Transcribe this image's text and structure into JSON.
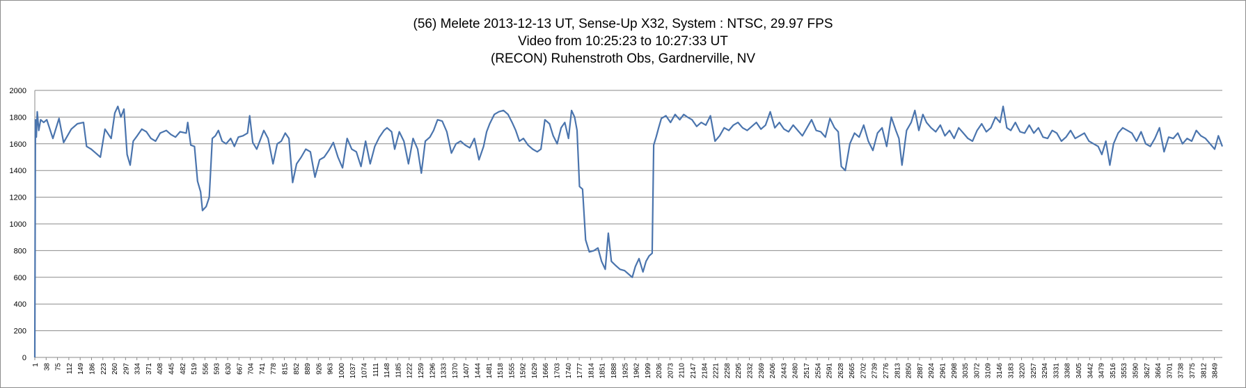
{
  "chart_data": {
    "type": "line",
    "title_lines": [
      "(56) Melete 2013-12-13 UT, Sense-Up X32, System : NTSC, 29.97 FPS",
      "Video from 10:25:23 to 10:27:33 UT",
      "(RECON) Ruhenstroth Obs, Gardnerville, NV"
    ],
    "xlabel": "",
    "ylabel": "",
    "ylim": [
      0,
      2000
    ],
    "y_ticks": [
      0,
      200,
      400,
      600,
      800,
      1000,
      1200,
      1400,
      1600,
      1800,
      2000
    ],
    "x_range": [
      1,
      3875
    ],
    "x_tick_step": 37,
    "x_tick_labels": [
      "1",
      "38",
      "75",
      "112",
      "149",
      "186",
      "223",
      "260",
      "297",
      "334",
      "371",
      "408",
      "445",
      "482",
      "519",
      "556",
      "593",
      "630",
      "667",
      "704",
      "741",
      "778",
      "815",
      "852",
      "889",
      "926",
      "963",
      "1000",
      "1037",
      "1074",
      "1111",
      "1148",
      "1185",
      "1222",
      "1259",
      "1296",
      "1333",
      "1370",
      "1407",
      "1444",
      "1481",
      "1518",
      "1555",
      "1592",
      "1629",
      "1666",
      "1703",
      "1740",
      "1777",
      "1814",
      "1851",
      "1888",
      "1925",
      "1962",
      "1999",
      "2036",
      "2073",
      "2110",
      "2147",
      "2184",
      "2221",
      "2258",
      "2295",
      "2332",
      "2369",
      "2406",
      "2443",
      "2480",
      "2517",
      "2554",
      "2591",
      "2628",
      "2665",
      "2702",
      "2739",
      "2776",
      "2813",
      "2850",
      "2887",
      "2924",
      "2961",
      "2998",
      "3035",
      "3072",
      "3109",
      "3146",
      "3183",
      "3220",
      "3257",
      "3294",
      "3331",
      "3368",
      "3405",
      "3442",
      "3479",
      "3516",
      "3553",
      "3590",
      "3627",
      "3664",
      "3701",
      "3738",
      "3775",
      "3812",
      "3849"
    ],
    "grid": true,
    "legend": "none",
    "series": [
      {
        "color": "#4a74ad",
        "points": [
          [
            1,
            0
          ],
          [
            3,
            1780
          ],
          [
            6,
            1650
          ],
          [
            9,
            1840
          ],
          [
            14,
            1700
          ],
          [
            20,
            1780
          ],
          [
            30,
            1760
          ],
          [
            40,
            1780
          ],
          [
            60,
            1640
          ],
          [
            80,
            1790
          ],
          [
            95,
            1610
          ],
          [
            120,
            1710
          ],
          [
            140,
            1750
          ],
          [
            160,
            1760
          ],
          [
            170,
            1580
          ],
          [
            185,
            1560
          ],
          [
            200,
            1530
          ],
          [
            215,
            1500
          ],
          [
            230,
            1710
          ],
          [
            250,
            1640
          ],
          [
            262,
            1830
          ],
          [
            272,
            1880
          ],
          [
            282,
            1800
          ],
          [
            292,
            1860
          ],
          [
            302,
            1520
          ],
          [
            312,
            1440
          ],
          [
            322,
            1620
          ],
          [
            335,
            1660
          ],
          [
            350,
            1710
          ],
          [
            365,
            1690
          ],
          [
            380,
            1640
          ],
          [
            395,
            1620
          ],
          [
            410,
            1680
          ],
          [
            430,
            1700
          ],
          [
            445,
            1670
          ],
          [
            460,
            1650
          ],
          [
            475,
            1690
          ],
          [
            495,
            1680
          ],
          [
            500,
            1760
          ],
          [
            510,
            1590
          ],
          [
            522,
            1580
          ],
          [
            532,
            1320
          ],
          [
            542,
            1240
          ],
          [
            548,
            1100
          ],
          [
            560,
            1130
          ],
          [
            570,
            1200
          ],
          [
            580,
            1640
          ],
          [
            590,
            1660
          ],
          [
            600,
            1700
          ],
          [
            612,
            1620
          ],
          [
            625,
            1600
          ],
          [
            640,
            1640
          ],
          [
            652,
            1580
          ],
          [
            665,
            1650
          ],
          [
            680,
            1660
          ],
          [
            695,
            1680
          ],
          [
            702,
            1810
          ],
          [
            712,
            1610
          ],
          [
            725,
            1560
          ],
          [
            735,
            1620
          ],
          [
            748,
            1700
          ],
          [
            762,
            1640
          ],
          [
            778,
            1450
          ],
          [
            792,
            1600
          ],
          [
            805,
            1620
          ],
          [
            818,
            1680
          ],
          [
            830,
            1640
          ],
          [
            842,
            1310
          ],
          [
            855,
            1450
          ],
          [
            870,
            1500
          ],
          [
            885,
            1560
          ],
          [
            900,
            1540
          ],
          [
            915,
            1350
          ],
          [
            930,
            1480
          ],
          [
            945,
            1500
          ],
          [
            960,
            1550
          ],
          [
            975,
            1610
          ],
          [
            990,
            1500
          ],
          [
            1005,
            1420
          ],
          [
            1020,
            1640
          ],
          [
            1035,
            1560
          ],
          [
            1050,
            1540
          ],
          [
            1065,
            1430
          ],
          [
            1080,
            1620
          ],
          [
            1095,
            1450
          ],
          [
            1110,
            1580
          ],
          [
            1125,
            1650
          ],
          [
            1140,
            1700
          ],
          [
            1150,
            1720
          ],
          [
            1165,
            1690
          ],
          [
            1175,
            1560
          ],
          [
            1190,
            1690
          ],
          [
            1205,
            1620
          ],
          [
            1220,
            1450
          ],
          [
            1235,
            1640
          ],
          [
            1250,
            1560
          ],
          [
            1262,
            1380
          ],
          [
            1275,
            1620
          ],
          [
            1290,
            1650
          ],
          [
            1302,
            1700
          ],
          [
            1315,
            1780
          ],
          [
            1330,
            1770
          ],
          [
            1345,
            1690
          ],
          [
            1360,
            1530
          ],
          [
            1375,
            1600
          ],
          [
            1390,
            1620
          ],
          [
            1405,
            1590
          ],
          [
            1420,
            1570
          ],
          [
            1435,
            1640
          ],
          [
            1450,
            1480
          ],
          [
            1465,
            1580
          ],
          [
            1475,
            1690
          ],
          [
            1485,
            1750
          ],
          [
            1500,
            1820
          ],
          [
            1515,
            1840
          ],
          [
            1530,
            1850
          ],
          [
            1545,
            1820
          ],
          [
            1558,
            1760
          ],
          [
            1570,
            1700
          ],
          [
            1582,
            1620
          ],
          [
            1595,
            1640
          ],
          [
            1610,
            1590
          ],
          [
            1625,
            1560
          ],
          [
            1640,
            1540
          ],
          [
            1652,
            1560
          ],
          [
            1665,
            1780
          ],
          [
            1680,
            1750
          ],
          [
            1692,
            1660
          ],
          [
            1705,
            1600
          ],
          [
            1718,
            1720
          ],
          [
            1730,
            1760
          ],
          [
            1742,
            1640
          ],
          [
            1752,
            1850
          ],
          [
            1762,
            1800
          ],
          [
            1770,
            1700
          ],
          [
            1778,
            1280
          ],
          [
            1788,
            1260
          ],
          [
            1798,
            880
          ],
          [
            1810,
            790
          ],
          [
            1825,
            800
          ],
          [
            1838,
            820
          ],
          [
            1850,
            720
          ],
          [
            1862,
            660
          ],
          [
            1872,
            930
          ],
          [
            1882,
            720
          ],
          [
            1895,
            690
          ],
          [
            1910,
            660
          ],
          [
            1925,
            650
          ],
          [
            1940,
            620
          ],
          [
            1950,
            600
          ],
          [
            1960,
            680
          ],
          [
            1972,
            740
          ],
          [
            1985,
            640
          ],
          [
            1995,
            720
          ],
          [
            2005,
            760
          ],
          [
            2015,
            780
          ],
          [
            2020,
            1590
          ],
          [
            2028,
            1650
          ],
          [
            2036,
            1720
          ],
          [
            2045,
            1790
          ],
          [
            2060,
            1810
          ],
          [
            2075,
            1760
          ],
          [
            2090,
            1820
          ],
          [
            2105,
            1780
          ],
          [
            2118,
            1820
          ],
          [
            2130,
            1800
          ],
          [
            2145,
            1780
          ],
          [
            2160,
            1730
          ],
          [
            2175,
            1760
          ],
          [
            2190,
            1740
          ],
          [
            2205,
            1810
          ],
          [
            2220,
            1620
          ],
          [
            2235,
            1660
          ],
          [
            2250,
            1720
          ],
          [
            2265,
            1700
          ],
          [
            2280,
            1740
          ],
          [
            2295,
            1760
          ],
          [
            2310,
            1720
          ],
          [
            2325,
            1700
          ],
          [
            2340,
            1730
          ],
          [
            2355,
            1760
          ],
          [
            2370,
            1710
          ],
          [
            2385,
            1740
          ],
          [
            2400,
            1840
          ],
          [
            2415,
            1720
          ],
          [
            2430,
            1760
          ],
          [
            2445,
            1710
          ],
          [
            2460,
            1690
          ],
          [
            2475,
            1740
          ],
          [
            2490,
            1700
          ],
          [
            2505,
            1660
          ],
          [
            2520,
            1720
          ],
          [
            2535,
            1780
          ],
          [
            2550,
            1700
          ],
          [
            2565,
            1690
          ],
          [
            2580,
            1650
          ],
          [
            2595,
            1790
          ],
          [
            2610,
            1720
          ],
          [
            2622,
            1690
          ],
          [
            2632,
            1430
          ],
          [
            2645,
            1400
          ],
          [
            2660,
            1600
          ],
          [
            2675,
            1680
          ],
          [
            2690,
            1650
          ],
          [
            2705,
            1740
          ],
          [
            2720,
            1620
          ],
          [
            2735,
            1550
          ],
          [
            2750,
            1680
          ],
          [
            2765,
            1720
          ],
          [
            2780,
            1580
          ],
          [
            2795,
            1800
          ],
          [
            2810,
            1700
          ],
          [
            2820,
            1640
          ],
          [
            2830,
            1440
          ],
          [
            2845,
            1700
          ],
          [
            2860,
            1760
          ],
          [
            2872,
            1850
          ],
          [
            2885,
            1700
          ],
          [
            2898,
            1820
          ],
          [
            2910,
            1760
          ],
          [
            2925,
            1720
          ],
          [
            2940,
            1690
          ],
          [
            2955,
            1740
          ],
          [
            2970,
            1660
          ],
          [
            2985,
            1700
          ],
          [
            3000,
            1640
          ],
          [
            3015,
            1720
          ],
          [
            3030,
            1680
          ],
          [
            3045,
            1640
          ],
          [
            3060,
            1620
          ],
          [
            3075,
            1700
          ],
          [
            3090,
            1750
          ],
          [
            3105,
            1690
          ],
          [
            3120,
            1720
          ],
          [
            3135,
            1800
          ],
          [
            3150,
            1760
          ],
          [
            3160,
            1880
          ],
          [
            3172,
            1720
          ],
          [
            3185,
            1700
          ],
          [
            3200,
            1760
          ],
          [
            3215,
            1690
          ],
          [
            3230,
            1680
          ],
          [
            3245,
            1740
          ],
          [
            3260,
            1680
          ],
          [
            3275,
            1720
          ],
          [
            3290,
            1650
          ],
          [
            3305,
            1640
          ],
          [
            3320,
            1700
          ],
          [
            3335,
            1680
          ],
          [
            3350,
            1620
          ],
          [
            3365,
            1650
          ],
          [
            3380,
            1700
          ],
          [
            3395,
            1640
          ],
          [
            3410,
            1660
          ],
          [
            3425,
            1680
          ],
          [
            3440,
            1620
          ],
          [
            3455,
            1600
          ],
          [
            3470,
            1580
          ],
          [
            3482,
            1520
          ],
          [
            3495,
            1620
          ],
          [
            3508,
            1440
          ],
          [
            3520,
            1600
          ],
          [
            3535,
            1680
          ],
          [
            3550,
            1720
          ],
          [
            3565,
            1700
          ],
          [
            3580,
            1680
          ],
          [
            3595,
            1620
          ],
          [
            3610,
            1690
          ],
          [
            3625,
            1600
          ],
          [
            3640,
            1580
          ],
          [
            3655,
            1640
          ],
          [
            3670,
            1720
          ],
          [
            3685,
            1540
          ],
          [
            3700,
            1650
          ],
          [
            3715,
            1640
          ],
          [
            3730,
            1680
          ],
          [
            3745,
            1600
          ],
          [
            3760,
            1640
          ],
          [
            3775,
            1620
          ],
          [
            3790,
            1700
          ],
          [
            3805,
            1660
          ],
          [
            3820,
            1640
          ],
          [
            3835,
            1600
          ],
          [
            3850,
            1560
          ],
          [
            3862,
            1660
          ],
          [
            3875,
            1580
          ]
        ]
      }
    ]
  }
}
